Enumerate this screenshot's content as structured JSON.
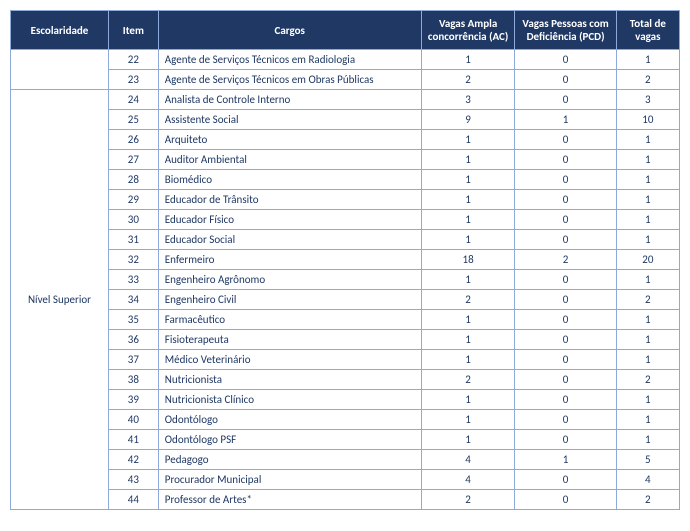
{
  "headers": {
    "escolaridade": "Escolaridade",
    "item": "Item",
    "cargos": "Cargos",
    "ac": "Vagas Ampla concorrência (AC)",
    "pcd": "Vagas Pessoas com Deficiência (PCD)",
    "total": "Total de vagas"
  },
  "groups": [
    {
      "label": "",
      "rows": [
        {
          "item": "22",
          "cargo": "Agente de Serviços Técnicos em Radiologia",
          "ac": "1",
          "pcd": "0",
          "total": "1"
        },
        {
          "item": "23",
          "cargo": "Agente de Serviços Técnicos em Obras Públicas",
          "ac": "2",
          "pcd": "0",
          "total": "2"
        }
      ]
    },
    {
      "label": "Nível Superior",
      "rows": [
        {
          "item": "24",
          "cargo": "Analista de Controle Interno",
          "ac": "3",
          "pcd": "0",
          "total": "3"
        },
        {
          "item": "25",
          "cargo": "Assistente Social",
          "ac": "9",
          "pcd": "1",
          "total": "10"
        },
        {
          "item": "26",
          "cargo": "Arquiteto",
          "ac": "1",
          "pcd": "0",
          "total": "1"
        },
        {
          "item": "27",
          "cargo": "Auditor Ambiental",
          "ac": "1",
          "pcd": "0",
          "total": "1"
        },
        {
          "item": "28",
          "cargo": "Biomédico",
          "ac": "1",
          "pcd": "0",
          "total": "1"
        },
        {
          "item": "29",
          "cargo": "Educador de Trânsito",
          "ac": "1",
          "pcd": "0",
          "total": "1"
        },
        {
          "item": "30",
          "cargo": "Educador Físico",
          "ac": "1",
          "pcd": "0",
          "total": "1"
        },
        {
          "item": "31",
          "cargo": "Educador Social",
          "ac": "1",
          "pcd": "0",
          "total": "1"
        },
        {
          "item": "32",
          "cargo": "Enfermeiro",
          "ac": "18",
          "pcd": "2",
          "total": "20"
        },
        {
          "item": "33",
          "cargo": "Engenheiro Agrônomo",
          "ac": "1",
          "pcd": "0",
          "total": "1"
        },
        {
          "item": "34",
          "cargo": "Engenheiro Civil",
          "ac": "2",
          "pcd": "0",
          "total": "2"
        },
        {
          "item": "35",
          "cargo": "Farmacêutico",
          "ac": "1",
          "pcd": "0",
          "total": "1"
        },
        {
          "item": "36",
          "cargo": "Fisioterapeuta",
          "ac": "1",
          "pcd": "0",
          "total": "1"
        },
        {
          "item": "37",
          "cargo": "Médico Veterinário",
          "ac": "1",
          "pcd": "0",
          "total": "1"
        },
        {
          "item": "38",
          "cargo": "Nutricionista",
          "ac": "2",
          "pcd": "0",
          "total": "2"
        },
        {
          "item": "39",
          "cargo": "Nutricionista Clínico",
          "ac": "1",
          "pcd": "0",
          "total": "1"
        },
        {
          "item": "40",
          "cargo": "Odontólogo",
          "ac": "1",
          "pcd": "0",
          "total": "1"
        },
        {
          "item": "41",
          "cargo": "Odontólogo PSF",
          "ac": "1",
          "pcd": "0",
          "total": "1"
        },
        {
          "item": "42",
          "cargo": "Pedagogo",
          "ac": "4",
          "pcd": "1",
          "total": "5"
        },
        {
          "item": "43",
          "cargo": "Procurador Municipal",
          "ac": "4",
          "pcd": "0",
          "total": "4"
        },
        {
          "item": "44",
          "cargo": "Professor de Artes*",
          "ac": "2",
          "pcd": "0",
          "total": "2"
        }
      ]
    }
  ]
}
